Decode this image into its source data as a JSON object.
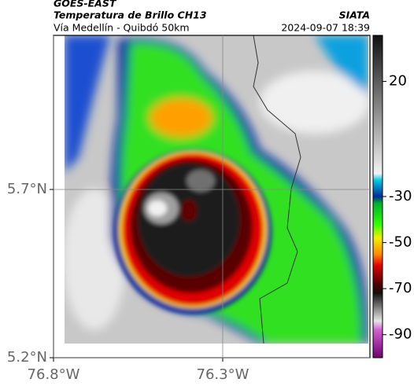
{
  "header": {
    "satellite": "GOES-EAST",
    "product": "Temperatura de Brillo CH13",
    "agency": "SIATA",
    "route": "Vía Medellín - Quibdó 50km",
    "datetime": "2024-09-07 18:39"
  },
  "map": {
    "xlim": [
      -76.8,
      -75.865
    ],
    "ylim": [
      5.2,
      6.158
    ],
    "grid": true,
    "xticks": [
      {
        "value": -76.8,
        "label": "76.8°W"
      },
      {
        "value": -76.3,
        "label": "76.3°W"
      }
    ],
    "yticks": [
      {
        "value": 5.2,
        "label": "5.2°N"
      },
      {
        "value": 5.7,
        "label": "5.7°N"
      }
    ]
  },
  "colorbar": {
    "lim": [
      40,
      -100
    ],
    "ticks": [
      20,
      -30,
      -50,
      -70,
      -90
    ],
    "stops": [
      {
        "value": 40,
        "color": "#111111"
      },
      {
        "value": -20,
        "color": "#f2f2f2"
      },
      {
        "value": -23,
        "color": "#00c8e0"
      },
      {
        "value": -30,
        "color": "#002a9a"
      },
      {
        "value": -33,
        "color": "#00b030"
      },
      {
        "value": -42,
        "color": "#30ff00"
      },
      {
        "value": -48,
        "color": "#f0f000"
      },
      {
        "value": -55,
        "color": "#ff8a00"
      },
      {
        "value": -60,
        "color": "#e00000"
      },
      {
        "value": -68,
        "color": "#500000"
      },
      {
        "value": -72,
        "color": "#111111"
      },
      {
        "value": -84,
        "color": "#e6e6e6"
      },
      {
        "value": -88,
        "color": "#d060d0"
      },
      {
        "value": -100,
        "color": "#700070"
      }
    ]
  }
}
